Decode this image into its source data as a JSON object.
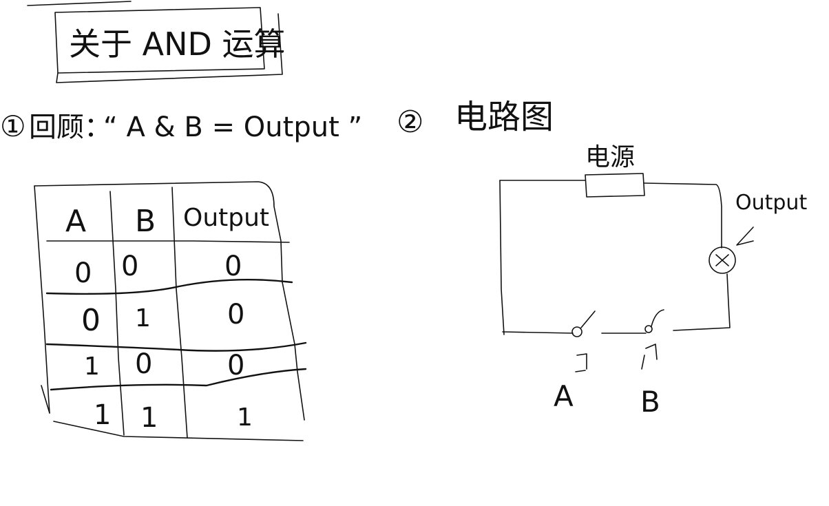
{
  "title": "关于 AND 运算",
  "section1": {
    "number": "①",
    "label": "回顾：",
    "expression": "“ A & B = Output ”"
  },
  "section2": {
    "number": "②",
    "label": "电路图"
  },
  "truth_table": {
    "headers": [
      "A",
      "B",
      "Output"
    ],
    "rows": [
      [
        "0",
        "0",
        "0"
      ],
      [
        "0",
        "1",
        "0"
      ],
      [
        "1",
        "0",
        "0"
      ],
      [
        "1",
        "1",
        "1"
      ]
    ]
  },
  "circuit": {
    "power_label": "电源",
    "output_label": "Output",
    "switch_a_label": "A",
    "switch_b_label": "B"
  }
}
